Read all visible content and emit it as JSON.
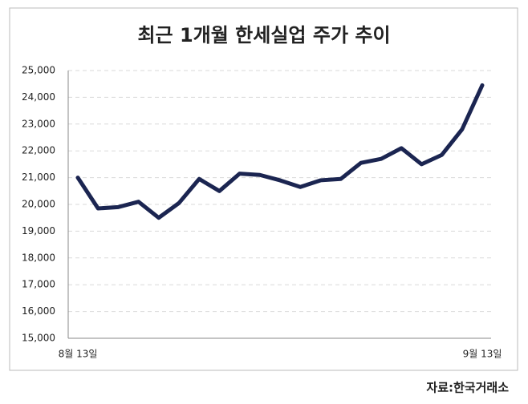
{
  "chart_data": {
    "type": "line",
    "title": "최근 1개월 한세실업 주가 추이",
    "source": "자료:한국거래소",
    "categories": [
      "8월 13일",
      null,
      null,
      null,
      null,
      null,
      null,
      null,
      null,
      null,
      null,
      null,
      null,
      null,
      null,
      null,
      null,
      null,
      null,
      null,
      "9월 13일"
    ],
    "series": [
      {
        "color": "#1b2551",
        "values": [
          21000,
          19850,
          19900,
          20100,
          19500,
          20050,
          20950,
          20500,
          21150,
          21100,
          20900,
          20650,
          20900,
          20950,
          21550,
          21700,
          22100,
          21500,
          21850,
          22800,
          24450
        ]
      }
    ],
    "ylim": [
      15000,
      25000
    ],
    "yticks": [
      {
        "value": 15000,
        "label": "15,000"
      },
      {
        "value": 16000,
        "label": "16,000"
      },
      {
        "value": 17000,
        "label": "17,000"
      },
      {
        "value": 18000,
        "label": "18,000"
      },
      {
        "value": 19000,
        "label": "19,000"
      },
      {
        "value": 20000,
        "label": "20,000"
      },
      {
        "value": 21000,
        "label": "21,000"
      },
      {
        "value": 22000,
        "label": "22,000"
      },
      {
        "value": 23000,
        "label": "23,000"
      },
      {
        "value": 24000,
        "label": "24,000"
      },
      {
        "value": 25000,
        "label": "25,000"
      }
    ],
    "grid": true
  }
}
